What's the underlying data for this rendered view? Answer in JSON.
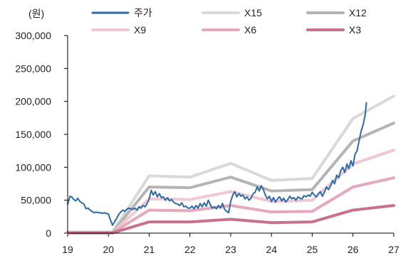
{
  "chart_data": {
    "type": "line",
    "title": "",
    "xlabel": "",
    "ylabel": "(원)",
    "xlim": [
      2019,
      2027
    ],
    "ylim": [
      0,
      300000
    ],
    "x_ticks": [
      2019,
      2020,
      2021,
      2022,
      2023,
      2024,
      2025,
      2026,
      2027
    ],
    "x_tick_labels": [
      "19",
      "20",
      "21",
      "22",
      "23",
      "24",
      "25",
      "26",
      "27"
    ],
    "y_ticks": [
      0,
      50000,
      100000,
      150000,
      200000,
      250000,
      300000
    ],
    "y_tick_labels": [
      "0",
      "50,000",
      "100,000",
      "150,000",
      "200,000",
      "250,000",
      "300,000"
    ],
    "grid": false,
    "legend_position": "top",
    "series": [
      {
        "name": "주가",
        "color": "#2e6aa3",
        "x": [
          2019.0,
          2019.03,
          2019.06,
          2019.1,
          2019.15,
          2019.2,
          2019.25,
          2019.3,
          2019.35,
          2019.4,
          2019.45,
          2019.5,
          2019.55,
          2019.6,
          2019.65,
          2019.7,
          2019.75,
          2019.8,
          2019.85,
          2019.9,
          2019.95,
          2020.0,
          2020.05,
          2020.1,
          2020.15,
          2020.2,
          2020.25,
          2020.3,
          2020.35,
          2020.4,
          2020.45,
          2020.5,
          2020.55,
          2020.6,
          2020.65,
          2020.7,
          2020.75,
          2020.8,
          2020.85,
          2020.9,
          2020.95,
          2021.0,
          2021.05,
          2021.1,
          2021.15,
          2021.2,
          2021.25,
          2021.3,
          2021.35,
          2021.4,
          2021.45,
          2021.5,
          2021.55,
          2021.6,
          2021.65,
          2021.7,
          2021.75,
          2021.8,
          2021.85,
          2021.9,
          2021.95,
          2022.0,
          2022.05,
          2022.1,
          2022.15,
          2022.2,
          2022.25,
          2022.3,
          2022.35,
          2022.4,
          2022.45,
          2022.5,
          2022.55,
          2022.6,
          2022.65,
          2022.7,
          2022.75,
          2022.8,
          2022.85,
          2022.9,
          2022.95,
          2023.0,
          2023.05,
          2023.1,
          2023.15,
          2023.2,
          2023.25,
          2023.3,
          2023.35,
          2023.4,
          2023.45,
          2023.5,
          2023.55,
          2023.6,
          2023.65,
          2023.7,
          2023.75,
          2023.8,
          2023.85,
          2023.9,
          2023.95,
          2024.0,
          2024.05,
          2024.1,
          2024.15,
          2024.2,
          2024.25,
          2024.3,
          2024.35,
          2024.4,
          2024.45,
          2024.5,
          2024.55,
          2024.6,
          2024.65,
          2024.7,
          2024.75,
          2024.8,
          2024.85,
          2024.9,
          2024.95,
          2025.0,
          2025.05,
          2025.1,
          2025.15,
          2025.2,
          2025.25,
          2025.3,
          2025.35,
          2025.4,
          2025.45,
          2025.5,
          2025.55,
          2025.6,
          2025.65,
          2025.7,
          2025.75,
          2025.8,
          2025.85,
          2025.9,
          2025.95,
          2026.0,
          2026.05,
          2026.1,
          2026.15,
          2026.2,
          2026.25,
          2026.3,
          2026.33
        ],
        "values": [
          44000,
          50000,
          56000,
          55000,
          51000,
          49000,
          53000,
          48000,
          46000,
          44000,
          37000,
          38000,
          35000,
          33000,
          31000,
          32000,
          31000,
          31000,
          30000,
          31000,
          30000,
          29000,
          20000,
          12000,
          17000,
          22000,
          28000,
          32000,
          35000,
          33000,
          36000,
          38000,
          37000,
          36000,
          38000,
          35000,
          40000,
          38000,
          42000,
          40000,
          45000,
          52000,
          65000,
          58000,
          63000,
          55000,
          60000,
          54000,
          55000,
          50000,
          54000,
          49000,
          51000,
          47000,
          45000,
          44000,
          42000,
          46000,
          40000,
          41000,
          38000,
          38000,
          41000,
          37000,
          42000,
          38000,
          45000,
          40000,
          46000,
          41000,
          50000,
          43000,
          38000,
          40000,
          37000,
          42000,
          38000,
          45000,
          36000,
          33000,
          31000,
          48000,
          58000,
          63000,
          55000,
          60000,
          56000,
          58000,
          52000,
          55000,
          50000,
          53000,
          60000,
          62000,
          70000,
          64000,
          72000,
          66000,
          58000,
          52000,
          56000,
          48000,
          54000,
          47000,
          52000,
          55000,
          49000,
          53000,
          47000,
          51000,
          56000,
          52000,
          54000,
          50000,
          55000,
          53000,
          52000,
          57000,
          55000,
          58000,
          56000,
          62000,
          58000,
          55000,
          60000,
          63000,
          56000,
          62000,
          70000,
          66000,
          72000,
          80000,
          75000,
          88000,
          84000,
          95000,
          100000,
          92000,
          105000,
          98000,
          110000,
          102000,
          120000,
          125000,
          140000,
          155000,
          165000,
          180000,
          198000
        ]
      },
      {
        "name": "X15",
        "color": "#d9d9d9",
        "x": [
          2019.0,
          2020.0,
          2020.1,
          2021.0,
          2022.0,
          2023.0,
          2024.0,
          2025.0,
          2026.0,
          2027.0
        ],
        "values": [
          1500,
          1500,
          1500,
          87000,
          85000,
          106000,
          80000,
          83000,
          174000,
          208000
        ]
      },
      {
        "name": "X12",
        "color": "#b4b4b4",
        "x": [
          2019.0,
          2020.0,
          2020.1,
          2021.0,
          2022.0,
          2023.0,
          2024.0,
          2025.0,
          2026.0,
          2027.0
        ],
        "values": [
          1200,
          1200,
          1200,
          70000,
          69000,
          85000,
          64000,
          66000,
          140000,
          167000
        ]
      },
      {
        "name": "X9",
        "color": "#f0c8d4",
        "x": [
          2019.0,
          2020.0,
          2020.1,
          2021.0,
          2022.0,
          2023.0,
          2024.0,
          2025.0,
          2026.0,
          2027.0
        ],
        "values": [
          900,
          900,
          900,
          52000,
          51000,
          63000,
          48000,
          50000,
          105000,
          126000
        ]
      },
      {
        "name": "X6",
        "color": "#e8a8bc",
        "x": [
          2019.0,
          2020.0,
          2020.1,
          2021.0,
          2022.0,
          2023.0,
          2024.0,
          2025.0,
          2026.0,
          2027.0
        ],
        "values": [
          600,
          600,
          600,
          35000,
          34000,
          42000,
          32000,
          33000,
          70000,
          84000
        ]
      },
      {
        "name": "X3",
        "color": "#c8708c",
        "x": [
          2019.0,
          2020.0,
          2020.1,
          2021.0,
          2022.0,
          2023.0,
          2024.0,
          2025.0,
          2026.0,
          2027.0
        ],
        "values": [
          300,
          300,
          300,
          17000,
          17000,
          21000,
          16000,
          17000,
          35000,
          42000
        ]
      }
    ]
  }
}
